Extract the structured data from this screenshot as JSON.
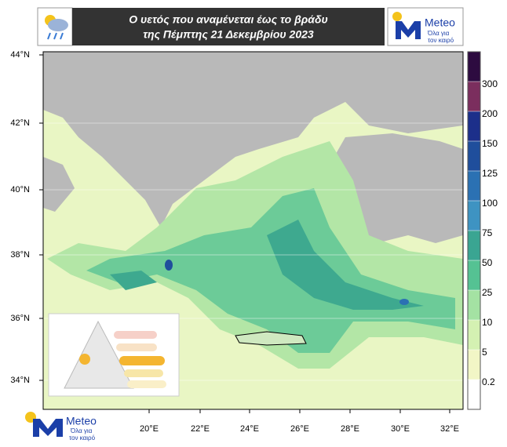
{
  "header": {
    "title_lines": [
      "Ο υετός που αναμένεται έως το βράδυ",
      "της Πέμπτης 21 Δεκεμβρίου 2023"
    ]
  },
  "logo": {
    "name": "Meteo",
    "tagline_lines": [
      "Όλα για",
      "τον καιρό"
    ]
  },
  "map": {
    "lat_labels": [
      "44°N",
      "42°N",
      "40°N",
      "38°N",
      "36°N",
      "34°N"
    ],
    "lon_labels": [
      "20°E",
      "22°E",
      "24°E",
      "26°E",
      "28°E",
      "30°E",
      "32°E"
    ]
  },
  "colorbar": {
    "levels": [
      300,
      200,
      150,
      125,
      100,
      75,
      50,
      25,
      10,
      5,
      0.2
    ],
    "colors": [
      "#2d0b40",
      "#7b2e5e",
      "#1c2f8a",
      "#1f4e9c",
      "#2b71b3",
      "#3e93c2",
      "#3aa592",
      "#55c293",
      "#a4e2a3",
      "#d4f1b2",
      "#f2f6c6",
      "#ffffff"
    ]
  }
}
